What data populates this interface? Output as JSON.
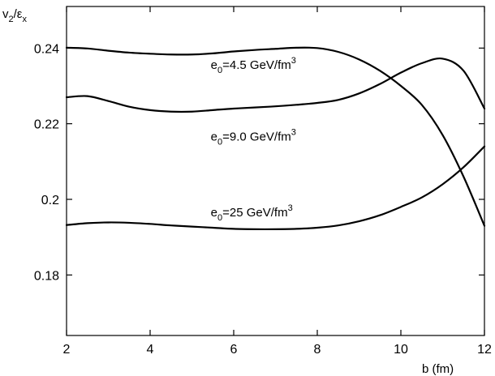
{
  "chart_data": {
    "type": "line",
    "title": "",
    "xlabel": "b (fm)",
    "ylabel": {
      "main": "v",
      "sub1": "2",
      "slash": "/",
      "eps": "ε",
      "sub2": "x"
    },
    "xlim": [
      2,
      12
    ],
    "ylim": [
      0.164,
      0.251
    ],
    "xticks": [
      {
        "value": 2,
        "label": "2"
      },
      {
        "value": 4,
        "label": "4"
      },
      {
        "value": 6,
        "label": "6"
      },
      {
        "value": 8,
        "label": "8"
      },
      {
        "value": 10,
        "label": "10"
      },
      {
        "value": 12,
        "label": "12"
      }
    ],
    "yticks": [
      {
        "value": 0.18,
        "label": "0.18"
      },
      {
        "value": 0.2,
        "label": "0.2"
      },
      {
        "value": 0.22,
        "label": "0.22"
      },
      {
        "value": 0.24,
        "label": "0.24"
      }
    ],
    "grid": false,
    "legend": "none",
    "series": [
      {
        "label_parts": {
          "pre": "e",
          "sub": "0",
          "mid": "=4.5 GeV/fm",
          "sup": "3"
        },
        "label_anchor": {
          "x": 5.45,
          "y": 0.2345
        },
        "color": "#000000",
        "x": [
          2,
          2.5,
          3,
          3.5,
          4,
          4.5,
          5,
          5.5,
          6,
          6.5,
          7,
          7.5,
          8,
          8.5,
          9,
          9.5,
          10,
          10.5,
          11,
          11.5,
          12
        ],
        "y": [
          0.2401,
          0.2399,
          0.2393,
          0.2388,
          0.2385,
          0.2383,
          0.2383,
          0.2386,
          0.2391,
          0.2395,
          0.2398,
          0.2401,
          0.24,
          0.239,
          0.237,
          0.234,
          0.23,
          0.225,
          0.217,
          0.206,
          0.193
        ]
      },
      {
        "label_parts": {
          "pre": "e",
          "sub": "0",
          "mid": "=9.0 GeV/fm",
          "sup": "3"
        },
        "label_anchor": {
          "x": 5.45,
          "y": 0.2155
        },
        "color": "#000000",
        "x": [
          2,
          2.5,
          3,
          3.5,
          4,
          4.5,
          5,
          5.5,
          6,
          6.5,
          7,
          7.5,
          8,
          8.5,
          9,
          9.5,
          10,
          10.5,
          11,
          11.5,
          12
        ],
        "y": [
          0.227,
          0.2273,
          0.226,
          0.2245,
          0.2236,
          0.2232,
          0.2232,
          0.2236,
          0.224,
          0.2243,
          0.2246,
          0.225,
          0.2255,
          0.2263,
          0.228,
          0.2305,
          0.2335,
          0.236,
          0.2372,
          0.234,
          0.224
        ]
      },
      {
        "label_parts": {
          "pre": "e",
          "sub": "0",
          "mid": "=25 GeV/fm",
          "sup": "3"
        },
        "label_anchor": {
          "x": 5.45,
          "y": 0.1955
        },
        "color": "#000000",
        "x": [
          2,
          2.5,
          3,
          3.5,
          4,
          4.5,
          5,
          5.5,
          6,
          6.5,
          7,
          7.5,
          8,
          8.5,
          9,
          9.5,
          10,
          10.5,
          11,
          11.5,
          12
        ],
        "y": [
          0.1932,
          0.1937,
          0.1939,
          0.1938,
          0.1935,
          0.1931,
          0.1928,
          0.1925,
          0.1922,
          0.1921,
          0.1921,
          0.1922,
          0.1925,
          0.1931,
          0.1942,
          0.1958,
          0.198,
          0.2005,
          0.204,
          0.2085,
          0.214
        ]
      }
    ]
  }
}
